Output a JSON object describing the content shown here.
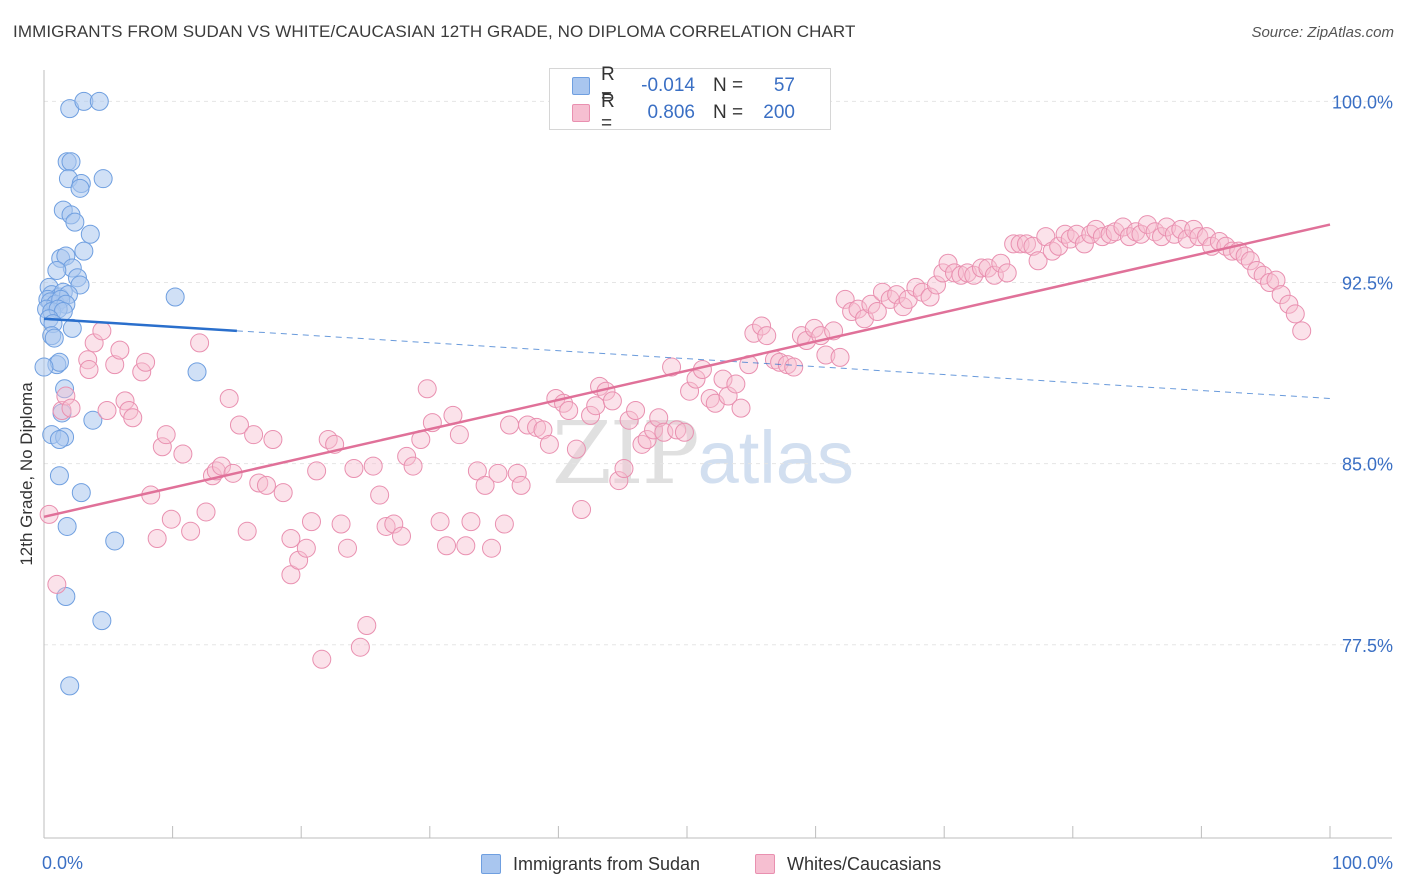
{
  "header": {
    "title": "IMMIGRANTS FROM SUDAN VS WHITE/CAUCASIAN 12TH GRADE, NO DIPLOMA CORRELATION CHART",
    "source": "Source: ZipAtlas.com"
  },
  "legend": {
    "rows": [
      {
        "r_label": "R =",
        "r_value": "-0.014",
        "n_label": "N =",
        "n_value": "57"
      },
      {
        "r_label": "R =",
        "r_value": "0.806",
        "n_label": "N =",
        "n_value": "200"
      }
    ]
  },
  "bottom_legend": {
    "items": [
      {
        "label": "Immigrants from Sudan"
      },
      {
        "label": "Whites/Caucasians"
      }
    ]
  },
  "watermark": {
    "zip": "ZIP",
    "atlas": "atlas"
  },
  "colors": {
    "blue_fill": "#a9c6ef",
    "blue_stroke": "#6f9fe0",
    "blue_line": "#2a6fcc",
    "pink_fill": "#f6bfd1",
    "pink_stroke": "#e990b0",
    "pink_line": "#e07199",
    "tick_label": "#3a6fc4",
    "grid": "#e5e5e5"
  },
  "chart_data": {
    "type": "scatter",
    "title": "IMMIGRANTS FROM SUDAN VS WHITE/CAUCASIAN 12TH GRADE, NO DIPLOMA CORRELATION CHART",
    "xlabel": "",
    "ylabel": "12th Grade, No Diploma",
    "xlim": [
      0,
      100
    ],
    "ylim": [
      69.5,
      101.3
    ],
    "x_tick_labels": [
      "0.0%",
      "100.0%"
    ],
    "y_ticks": [
      77.5,
      85.0,
      92.5,
      100.0
    ],
    "y_tick_labels": [
      "77.5%",
      "85.0%",
      "92.5%",
      "100.0%"
    ],
    "grid": "horizontal dashed",
    "series": [
      {
        "name": "Immigrants from Sudan",
        "color": "#a9c6ef",
        "r": -0.014,
        "n": 57,
        "trend": {
          "x": [
            0,
            15
          ],
          "y": [
            91.0,
            90.5
          ],
          "dashed_to": [
            100,
            87.7
          ]
        },
        "points": [
          [
            2.0,
            99.7
          ],
          [
            3.1,
            100.0
          ],
          [
            4.3,
            100.0
          ],
          [
            1.8,
            97.5
          ],
          [
            2.1,
            97.5
          ],
          [
            1.9,
            96.8
          ],
          [
            2.9,
            96.6
          ],
          [
            4.6,
            96.8
          ],
          [
            2.8,
            96.4
          ],
          [
            1.5,
            95.5
          ],
          [
            2.1,
            95.3
          ],
          [
            2.4,
            95.0
          ],
          [
            3.6,
            94.5
          ],
          [
            3.1,
            93.8
          ],
          [
            1.3,
            93.5
          ],
          [
            1.7,
            93.6
          ],
          [
            2.2,
            93.1
          ],
          [
            1.0,
            93.0
          ],
          [
            2.6,
            92.7
          ],
          [
            2.8,
            92.4
          ],
          [
            0.4,
            92.3
          ],
          [
            0.6,
            92.0
          ],
          [
            1.2,
            91.9
          ],
          [
            1.5,
            92.1
          ],
          [
            1.9,
            92.0
          ],
          [
            0.3,
            91.8
          ],
          [
            0.5,
            91.7
          ],
          [
            0.9,
            91.6
          ],
          [
            1.3,
            91.8
          ],
          [
            1.7,
            91.6
          ],
          [
            0.2,
            91.4
          ],
          [
            0.6,
            91.3
          ],
          [
            1.1,
            91.4
          ],
          [
            1.5,
            91.3
          ],
          [
            0.4,
            91.0
          ],
          [
            0.7,
            90.8
          ],
          [
            2.2,
            90.6
          ],
          [
            0.6,
            90.3
          ],
          [
            0.8,
            90.2
          ],
          [
            1.0,
            89.1
          ],
          [
            1.2,
            89.2
          ],
          [
            0.0,
            89.0
          ],
          [
            1.6,
            88.1
          ],
          [
            1.4,
            87.1
          ],
          [
            3.8,
            86.8
          ],
          [
            0.6,
            86.2
          ],
          [
            1.6,
            86.1
          ],
          [
            1.2,
            86.0
          ],
          [
            1.2,
            84.5
          ],
          [
            2.9,
            83.8
          ],
          [
            1.8,
            82.4
          ],
          [
            5.5,
            81.8
          ],
          [
            1.7,
            79.5
          ],
          [
            4.5,
            78.5
          ],
          [
            2.0,
            75.8
          ],
          [
            10.2,
            91.9
          ],
          [
            11.9,
            88.8
          ]
        ]
      },
      {
        "name": "Whites/Caucasians",
        "color": "#f6bfd1",
        "r": 0.806,
        "n": 200,
        "trend": {
          "x": [
            0,
            100
          ],
          "y": [
            82.8,
            94.9
          ]
        },
        "points": [
          [
            0.4,
            82.9
          ],
          [
            1.0,
            80.0
          ],
          [
            1.4,
            87.2
          ],
          [
            1.7,
            87.8
          ],
          [
            2.1,
            87.3
          ],
          [
            3.4,
            89.3
          ],
          [
            3.5,
            88.9
          ],
          [
            3.9,
            90.0
          ],
          [
            4.5,
            90.5
          ],
          [
            4.9,
            87.2
          ],
          [
            5.5,
            89.1
          ],
          [
            5.9,
            89.7
          ],
          [
            6.3,
            87.6
          ],
          [
            6.6,
            87.2
          ],
          [
            6.9,
            86.9
          ],
          [
            7.6,
            88.8
          ],
          [
            7.9,
            89.2
          ],
          [
            8.3,
            83.7
          ],
          [
            8.8,
            81.9
          ],
          [
            9.2,
            85.7
          ],
          [
            9.5,
            86.2
          ],
          [
            9.9,
            82.7
          ],
          [
            10.8,
            85.4
          ],
          [
            11.4,
            82.2
          ],
          [
            12.1,
            90.0
          ],
          [
            12.6,
            83.0
          ],
          [
            13.1,
            84.5
          ],
          [
            13.4,
            84.7
          ],
          [
            13.8,
            84.9
          ],
          [
            14.4,
            87.7
          ],
          [
            14.7,
            84.6
          ],
          [
            15.2,
            86.6
          ],
          [
            15.8,
            82.2
          ],
          [
            16.3,
            86.2
          ],
          [
            16.7,
            84.2
          ],
          [
            17.3,
            84.1
          ],
          [
            17.8,
            86.0
          ],
          [
            18.6,
            83.8
          ],
          [
            19.2,
            80.4
          ],
          [
            19.2,
            81.9
          ],
          [
            19.8,
            81.0
          ],
          [
            20.4,
            81.5
          ],
          [
            20.8,
            82.6
          ],
          [
            21.2,
            84.7
          ],
          [
            21.6,
            76.9
          ],
          [
            22.1,
            86.0
          ],
          [
            22.6,
            85.8
          ],
          [
            23.1,
            82.5
          ],
          [
            23.6,
            81.5
          ],
          [
            24.1,
            84.8
          ],
          [
            24.6,
            77.4
          ],
          [
            25.1,
            78.3
          ],
          [
            25.6,
            84.9
          ],
          [
            26.1,
            83.7
          ],
          [
            26.6,
            82.4
          ],
          [
            27.2,
            82.5
          ],
          [
            27.8,
            82.0
          ],
          [
            28.2,
            85.3
          ],
          [
            28.7,
            84.9
          ],
          [
            29.3,
            86.0
          ],
          [
            29.8,
            88.1
          ],
          [
            30.2,
            86.7
          ],
          [
            30.8,
            82.6
          ],
          [
            31.3,
            81.6
          ],
          [
            31.8,
            87.0
          ],
          [
            32.3,
            86.2
          ],
          [
            32.8,
            81.6
          ],
          [
            33.2,
            82.6
          ],
          [
            33.7,
            84.7
          ],
          [
            34.3,
            84.1
          ],
          [
            34.8,
            81.5
          ],
          [
            35.3,
            84.6
          ],
          [
            35.8,
            82.5
          ],
          [
            36.2,
            86.6
          ],
          [
            36.8,
            84.6
          ],
          [
            37.1,
            84.1
          ],
          [
            37.6,
            86.6
          ],
          [
            38.3,
            86.5
          ],
          [
            38.8,
            86.4
          ],
          [
            39.3,
            85.8
          ],
          [
            39.8,
            87.7
          ],
          [
            40.4,
            87.5
          ],
          [
            40.8,
            87.2
          ],
          [
            41.4,
            85.6
          ],
          [
            41.8,
            83.1
          ],
          [
            42.5,
            87.0
          ],
          [
            42.9,
            87.4
          ],
          [
            43.2,
            88.2
          ],
          [
            43.7,
            88.0
          ],
          [
            44.2,
            87.6
          ],
          [
            44.7,
            84.3
          ],
          [
            45.1,
            84.8
          ],
          [
            45.5,
            86.8
          ],
          [
            46.0,
            87.2
          ],
          [
            46.5,
            85.8
          ],
          [
            46.9,
            86.0
          ],
          [
            47.4,
            86.4
          ],
          [
            47.8,
            86.9
          ],
          [
            48.2,
            86.3
          ],
          [
            48.8,
            89.0
          ],
          [
            49.2,
            86.4
          ],
          [
            49.8,
            86.3
          ],
          [
            50.2,
            88.0
          ],
          [
            50.7,
            88.5
          ],
          [
            51.2,
            88.9
          ],
          [
            51.8,
            87.7
          ],
          [
            52.2,
            87.5
          ],
          [
            52.8,
            88.5
          ],
          [
            53.2,
            87.8
          ],
          [
            53.8,
            88.3
          ],
          [
            54.2,
            87.3
          ],
          [
            54.8,
            89.1
          ],
          [
            55.2,
            90.4
          ],
          [
            55.8,
            90.7
          ],
          [
            56.2,
            90.3
          ],
          [
            56.8,
            89.3
          ],
          [
            57.2,
            89.2
          ],
          [
            57.8,
            89.1
          ],
          [
            58.3,
            89.0
          ],
          [
            58.9,
            90.3
          ],
          [
            59.3,
            90.1
          ],
          [
            59.9,
            90.6
          ],
          [
            60.4,
            90.3
          ],
          [
            60.8,
            89.5
          ],
          [
            61.4,
            90.5
          ],
          [
            61.9,
            89.4
          ],
          [
            62.3,
            91.8
          ],
          [
            62.8,
            91.3
          ],
          [
            63.3,
            91.4
          ],
          [
            63.8,
            91.0
          ],
          [
            64.3,
            91.6
          ],
          [
            64.8,
            91.3
          ],
          [
            65.2,
            92.1
          ],
          [
            65.8,
            91.8
          ],
          [
            66.3,
            92.0
          ],
          [
            66.8,
            91.5
          ],
          [
            67.2,
            91.8
          ],
          [
            67.8,
            92.3
          ],
          [
            68.3,
            92.1
          ],
          [
            68.9,
            91.9
          ],
          [
            69.4,
            92.4
          ],
          [
            69.9,
            92.9
          ],
          [
            70.3,
            93.3
          ],
          [
            70.8,
            92.9
          ],
          [
            71.3,
            92.8
          ],
          [
            71.8,
            92.9
          ],
          [
            72.3,
            92.8
          ],
          [
            72.9,
            93.1
          ],
          [
            73.4,
            93.1
          ],
          [
            73.9,
            92.8
          ],
          [
            74.4,
            93.3
          ],
          [
            74.9,
            92.9
          ],
          [
            75.4,
            94.1
          ],
          [
            75.9,
            94.1
          ],
          [
            76.4,
            94.1
          ],
          [
            76.9,
            94.0
          ],
          [
            77.3,
            93.4
          ],
          [
            77.9,
            94.4
          ],
          [
            78.4,
            93.8
          ],
          [
            78.9,
            94.0
          ],
          [
            79.4,
            94.5
          ],
          [
            79.8,
            94.3
          ],
          [
            80.3,
            94.5
          ],
          [
            80.9,
            94.1
          ],
          [
            81.4,
            94.5
          ],
          [
            81.8,
            94.7
          ],
          [
            82.3,
            94.4
          ],
          [
            82.9,
            94.5
          ],
          [
            83.3,
            94.6
          ],
          [
            83.9,
            94.8
          ],
          [
            84.4,
            94.4
          ],
          [
            84.9,
            94.6
          ],
          [
            85.3,
            94.5
          ],
          [
            85.8,
            94.9
          ],
          [
            86.4,
            94.6
          ],
          [
            86.9,
            94.4
          ],
          [
            87.3,
            94.8
          ],
          [
            87.9,
            94.5
          ],
          [
            88.4,
            94.7
          ],
          [
            88.9,
            94.3
          ],
          [
            89.4,
            94.7
          ],
          [
            89.8,
            94.4
          ],
          [
            90.4,
            94.4
          ],
          [
            90.8,
            94.0
          ],
          [
            91.4,
            94.2
          ],
          [
            91.9,
            94.0
          ],
          [
            92.4,
            93.8
          ],
          [
            92.9,
            93.8
          ],
          [
            93.4,
            93.6
          ],
          [
            93.8,
            93.4
          ],
          [
            94.3,
            93.0
          ],
          [
            94.8,
            92.8
          ],
          [
            95.3,
            92.5
          ],
          [
            95.8,
            92.6
          ],
          [
            96.2,
            92.0
          ],
          [
            96.8,
            91.6
          ],
          [
            97.3,
            91.2
          ],
          [
            97.8,
            90.5
          ]
        ]
      }
    ]
  }
}
